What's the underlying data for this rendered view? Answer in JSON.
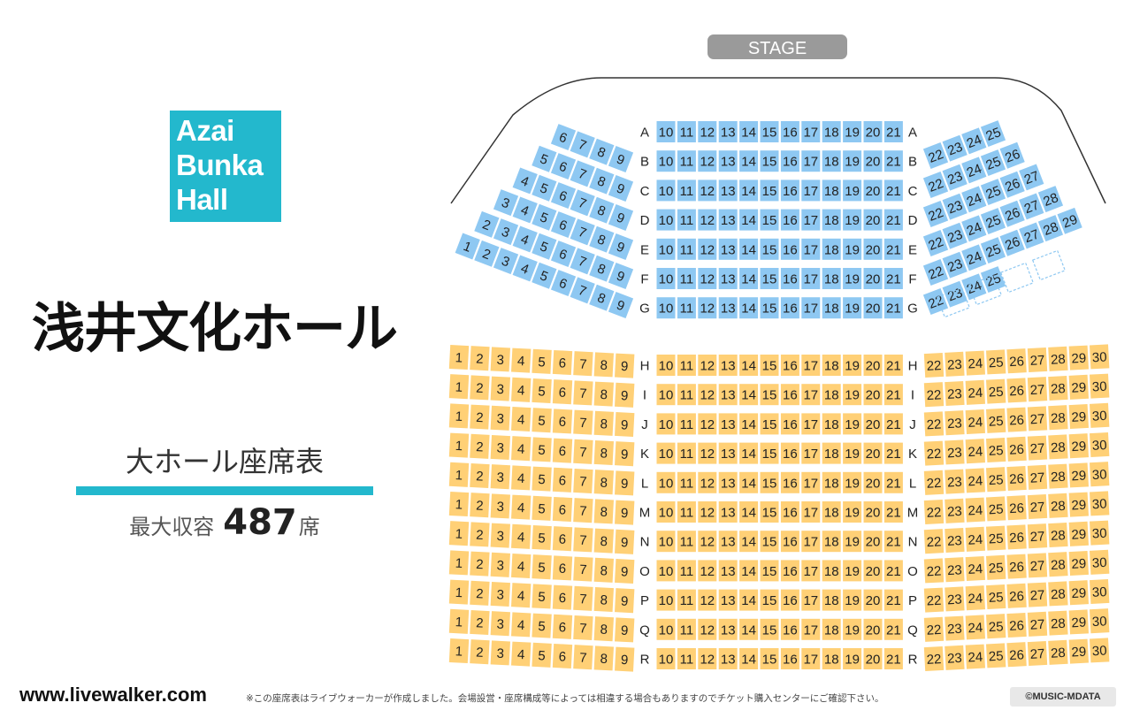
{
  "venue": {
    "logo_lines": [
      "Azai",
      "Bunka",
      "Hall"
    ],
    "name": "浅井文化ホール",
    "chart_title": "大ホール座席表",
    "capacity_label": "最大収容",
    "capacity_number": "487",
    "capacity_unit": "席"
  },
  "stage_label": "STAGE",
  "colors": {
    "front_block": "#8ec8f2",
    "rear_block": "#ffd076",
    "text": "#222222",
    "accent": "#23b8cd",
    "stage": "#9a9a9a"
  },
  "front_rows": [
    "A",
    "B",
    "C",
    "D",
    "E",
    "F",
    "G"
  ],
  "front_left": [
    {
      "row": "A",
      "seats": [
        6,
        7,
        8,
        9
      ]
    },
    {
      "row": "B",
      "seats": [
        5,
        6,
        7,
        8,
        9
      ]
    },
    {
      "row": "C",
      "seats": [
        4,
        5,
        6,
        7,
        8,
        9
      ]
    },
    {
      "row": "D",
      "seats": [
        3,
        4,
        5,
        6,
        7,
        8,
        9
      ]
    },
    {
      "row": "E",
      "seats": [
        2,
        3,
        4,
        5,
        6,
        7,
        8,
        9
      ]
    },
    {
      "row": "F",
      "seats": [
        1,
        2,
        3,
        4,
        5,
        6,
        7,
        8,
        9
      ]
    },
    {
      "row": "G",
      "seats": []
    }
  ],
  "front_right": [
    {
      "row": "A",
      "seats": [
        22,
        23,
        24,
        25
      ],
      "empty_spaces": 0
    },
    {
      "row": "B",
      "seats": [
        22,
        23,
        24,
        25,
        26
      ],
      "empty_spaces": 0
    },
    {
      "row": "C",
      "seats": [
        22,
        23,
        24,
        25,
        26,
        27
      ],
      "empty_spaces": 0
    },
    {
      "row": "D",
      "seats": [
        22,
        23,
        24,
        25,
        26,
        27,
        28
      ],
      "empty_spaces": 0
    },
    {
      "row": "E",
      "seats": [
        22,
        23,
        24,
        25,
        26,
        27,
        28,
        29
      ],
      "empty_spaces": 0
    },
    {
      "row": "F",
      "seats": [
        22,
        23,
        24,
        25
      ],
      "empty_spaces": 4
    },
    {
      "row": "G",
      "seats": [],
      "empty_spaces": 0
    }
  ],
  "center_seats": [
    10,
    11,
    12,
    13,
    14,
    15,
    16,
    17,
    18,
    19,
    20,
    21
  ],
  "rear_rows": [
    "H",
    "I",
    "J",
    "K",
    "L",
    "M",
    "N",
    "O",
    "P",
    "Q",
    "R"
  ],
  "rear_left_seats": [
    1,
    2,
    3,
    4,
    5,
    6,
    7,
    8,
    9
  ],
  "rear_right_seats": [
    22,
    23,
    24,
    25,
    26,
    27,
    28,
    29,
    30
  ],
  "footer": {
    "url": "www.livewalker.com",
    "disclaimer": "※この座席表はライブウォーカーが作成しました。会場設営・座席構成等によっては相違する場合もありますのでチケット購入センターにご確認下さい。",
    "copyright": "©MUSIC-MDATA"
  }
}
